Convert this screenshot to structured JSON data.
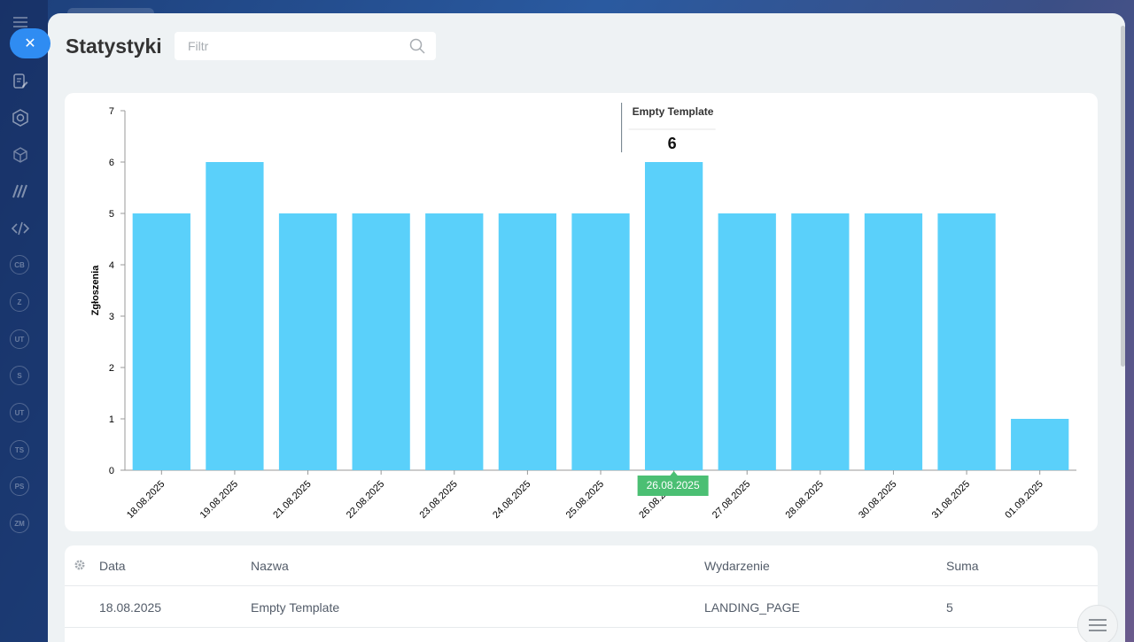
{
  "page": {
    "title": "Statystyki"
  },
  "filter": {
    "placeholder": "Filtr",
    "value": ""
  },
  "sidebar": {
    "badges": [
      "CB",
      "Z",
      "UT",
      "S",
      "UT",
      "TS",
      "PS",
      "ZM"
    ]
  },
  "chart_data": {
    "type": "bar",
    "ylabel": "Zgłoszenia",
    "xlabel": "",
    "ylim": [
      0,
      7
    ],
    "yticks": [
      0,
      1,
      2,
      3,
      4,
      5,
      6,
      7
    ],
    "categories": [
      "18.08.2025",
      "19.08.2025",
      "21.08.2025",
      "22.08.2025",
      "23.08.2025",
      "24.08.2025",
      "25.08.2025",
      "26.08.2025",
      "27.08.2025",
      "28.08.2025",
      "30.08.2025",
      "31.08.2025",
      "01.09.2025"
    ],
    "values": [
      5,
      6,
      5,
      5,
      5,
      5,
      5,
      6,
      5,
      5,
      5,
      5,
      1
    ],
    "bar_color": "#5ad0fa",
    "tooltip": {
      "series": "Empty Template",
      "value": "6",
      "category_index": 7
    },
    "cursor_label": {
      "text": "26.08.2025",
      "color": "#4bbf73"
    }
  },
  "table": {
    "headers": [
      "Data",
      "Nazwa",
      "Wydarzenie",
      "Suma"
    ],
    "rows": [
      [
        "18.08.2025",
        "Empty Template",
        "LANDING_PAGE",
        "5"
      ]
    ]
  },
  "colors": {
    "accent": "#2f8cf2",
    "panel_bg": "#eef2f4"
  }
}
